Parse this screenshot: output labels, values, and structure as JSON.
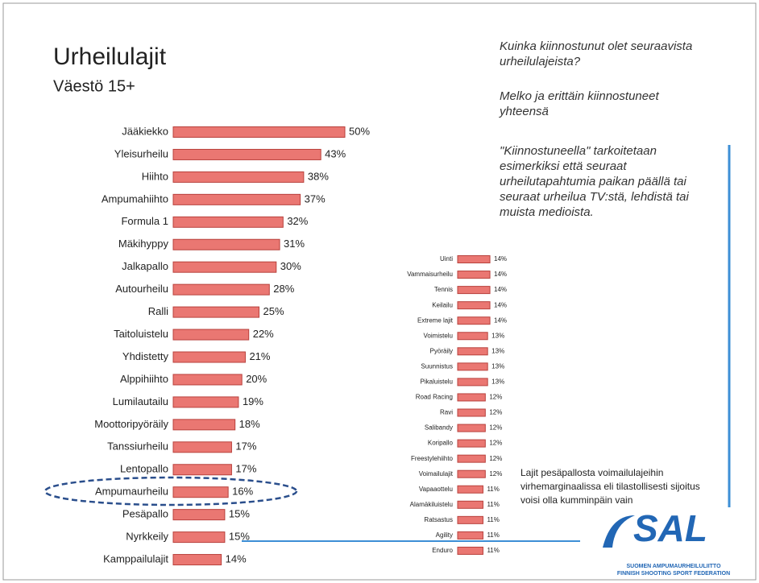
{
  "header": {
    "title": "Urheilulajit",
    "subtitle": "Väestö 15+"
  },
  "notes": [
    [
      "Kuinka kiinnostunut olet seuraavista",
      "urheilulajeista?"
    ],
    [
      "Melko ja erittäin kiinnostuneet",
      "yhteensä"
    ],
    [
      "\"Kiinnostuneella\" tarkoitetaan",
      "esimerkiksi että seuraat",
      "urheilutapahtumia paikan päällä tai",
      "seuraat urheilua TV:stä, lehdistä tai",
      "muista medioista."
    ]
  ],
  "side_note": [
    "Lajit pesäpallosta voimailulajeihin",
    "virhemarginaalissa eli tilastollisesti sijoitus",
    "voisi olla kumminpäin vain"
  ],
  "logo": {
    "name": "SAL",
    "line1": "SUOMEN AMPUMAURHEILULIITTO",
    "line2": "FINNISH SHOOTING SPORT FEDERATION"
  },
  "chart_data": [
    {
      "type": "hbar",
      "color": "#ea7772",
      "categories": [
        "Jääkiekko",
        "Yleisurheilu",
        "Hiihto",
        "Ampumahiihto",
        "Formula 1",
        "Mäkihyppy",
        "Jalkapallo",
        "Autourheilu",
        "Ralli",
        "Taitoluistelu",
        "Yhdistetty",
        "Alppihiihto",
        "Lumilautailu",
        "Moottoripyöräily",
        "Tanssiurheilu",
        "Lentopallo",
        "Ampumaurheilu",
        "Pesäpallo",
        "Nyrkkeily",
        "Kamppailulajit"
      ],
      "values": [
        50,
        43,
        38,
        37,
        32,
        31,
        30,
        28,
        25,
        22,
        21,
        20,
        19,
        18,
        17,
        17,
        16,
        15,
        15,
        14
      ],
      "value_labels": [
        "50%",
        "43%",
        "38%",
        "37%",
        "32%",
        "31%",
        "30%",
        "28%",
        "25%",
        "22%",
        "21%",
        "20%",
        "19%",
        "18%",
        "17%",
        "17%",
        "16%",
        "15%",
        "15%",
        "14%"
      ]
    },
    {
      "type": "hbar",
      "color": "#ea7772",
      "categories": [
        "Uinti",
        "Vammaisurheilu",
        "Tennis",
        "Keilailu",
        "Extreme lajit",
        "Voimistelu",
        "Pyöräily",
        "Suunnistus",
        "Pikaluistelu",
        "Road Racing",
        "Ravi",
        "Salibandy",
        "Koripallo",
        "Freestylehiihto",
        "Voimailulajit",
        "Vapaaottelu",
        "Alamäkiluistelu",
        "Ratsastus",
        "Agility",
        "Enduro"
      ],
      "values": [
        14,
        14,
        14,
        14,
        14,
        13,
        13,
        13,
        13,
        12,
        12,
        12,
        12,
        12,
        12,
        11,
        11,
        11,
        11,
        11
      ],
      "value_labels": [
        "14%",
        "14%",
        "14%",
        "14%",
        "14%",
        "13%",
        "13%",
        "13%",
        "13%",
        "12%",
        "12%",
        "12%",
        "12%",
        "12%",
        "12%",
        "11%",
        "11%",
        "11%",
        "11%",
        "11%"
      ]
    }
  ]
}
